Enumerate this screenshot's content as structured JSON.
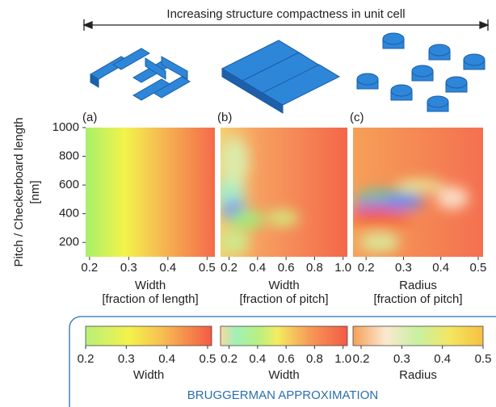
{
  "header": "Increasing structure compactness in unit cell",
  "chart_data": [
    {
      "type": "heatmap",
      "label": "(a)",
      "xlabel": [
        "Width",
        "[fraction of length]"
      ],
      "xlim": [
        0.19,
        0.52
      ],
      "xticks": [
        0.2,
        0.3,
        0.4,
        0.5
      ],
      "ylim": [
        100,
        1000
      ],
      "yticks": [
        200,
        400,
        600,
        800,
        1000
      ],
      "ylabel": [
        "Pitch / Checkerboard length",
        "[nm]"
      ]
    },
    {
      "type": "heatmap",
      "label": "(b)",
      "xlabel": [
        "Width",
        "[fraction of pitch]"
      ],
      "xlim": [
        0.14,
        1.03
      ],
      "xticks": [
        0.2,
        0.4,
        0.6,
        0.8,
        {
          "value": 1,
          "label": "1.0"
        }
      ],
      "ylim": [
        100,
        1000
      ]
    },
    {
      "type": "heatmap",
      "label": "(c)",
      "xlabel": [
        "Radius",
        "[fraction of pitch]"
      ],
      "xlim": [
        0.165,
        0.513
      ],
      "xticks": [
        0.2,
        0.3,
        0.4,
        0.5
      ],
      "ylim": [
        100,
        1000
      ]
    }
  ],
  "colorbars": [
    {
      "label": "Width",
      "xlim": [
        0.2,
        0.51
      ],
      "xticks": [
        0.2,
        0.3,
        0.4,
        0.5
      ]
    },
    {
      "label": "Width",
      "xlim": [
        0.14,
        1.03
      ],
      "xticks": [
        0.2,
        0.4,
        0.6,
        0.8,
        {
          "value": 1,
          "label": "1.0"
        }
      ]
    },
    {
      "label": "Radius",
      "xlim": [
        0.18,
        0.5
      ],
      "xticks": [
        0.2,
        0.3,
        0.4,
        0.5
      ]
    }
  ],
  "footer": "BRUGGERMAN APPROXIMATION"
}
